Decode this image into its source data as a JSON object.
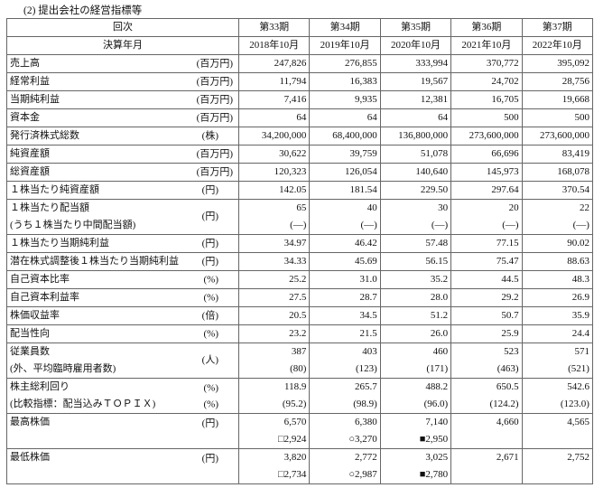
{
  "title": "(2) 提出会社の経営指標等",
  "header": {
    "row1_label": "回次",
    "row2_label": "決算年月",
    "periods": [
      "第33期",
      "第34期",
      "第35期",
      "第36期",
      "第37期"
    ],
    "dates": [
      "2018年10月",
      "2019年10月",
      "2020年10月",
      "2021年10月",
      "2022年10月"
    ]
  },
  "rows": [
    {
      "label": "売上高",
      "unit": "(百万円)",
      "values": [
        "247,826",
        "276,855",
        "333,994",
        "370,772",
        "395,092"
      ]
    },
    {
      "label": "経常利益",
      "unit": "(百万円)",
      "values": [
        "11,794",
        "16,383",
        "19,567",
        "24,702",
        "28,756"
      ]
    },
    {
      "label": "当期純利益",
      "unit": "(百万円)",
      "values": [
        "7,416",
        "9,935",
        "12,381",
        "16,705",
        "19,668"
      ]
    },
    {
      "label": "資本金",
      "unit": "(百万円)",
      "values": [
        "64",
        "64",
        "64",
        "500",
        "500"
      ]
    },
    {
      "label": "発行済株式総数",
      "unit": "(株)",
      "values": [
        "34,200,000",
        "68,400,000",
        "136,800,000",
        "273,600,000",
        "273,600,000"
      ]
    },
    {
      "label": "純資産額",
      "unit": "(百万円)",
      "values": [
        "30,622",
        "39,759",
        "51,078",
        "66,696",
        "83,419"
      ]
    },
    {
      "label": "総資産額",
      "unit": "(百万円)",
      "values": [
        "120,323",
        "126,054",
        "140,640",
        "145,973",
        "168,078"
      ]
    },
    {
      "label": "１株当たり純資産額",
      "unit": "(円)",
      "values": [
        "142.05",
        "181.54",
        "229.50",
        "297.64",
        "370.54"
      ]
    },
    {
      "label": "１株当たり配当額",
      "sublabel": "(うち１株当たり中間配当額)",
      "unit": "(円)",
      "values": [
        "65",
        "40",
        "30",
        "20",
        "22"
      ],
      "subvalues": [
        "(―)",
        "(―)",
        "(―)",
        "(―)",
        "(―)"
      ]
    },
    {
      "label": "１株当たり当期純利益",
      "unit": "(円)",
      "values": [
        "34.97",
        "46.42",
        "57.48",
        "77.15",
        "90.02"
      ]
    },
    {
      "label": "潜在株式調整後１株当たり当期純利益",
      "unit": "(円)",
      "values": [
        "34.33",
        "45.69",
        "56.15",
        "75.47",
        "88.63"
      ]
    },
    {
      "label": "自己資本比率",
      "unit": "(%)",
      "values": [
        "25.2",
        "31.0",
        "35.2",
        "44.5",
        "48.3"
      ]
    },
    {
      "label": "自己資本利益率",
      "unit": "(%)",
      "values": [
        "27.5",
        "28.7",
        "28.0",
        "29.2",
        "26.9"
      ]
    },
    {
      "label": "株価収益率",
      "unit": "(倍)",
      "values": [
        "20.5",
        "34.5",
        "51.2",
        "50.7",
        "35.9"
      ]
    },
    {
      "label": "配当性向",
      "unit": "(%)",
      "values": [
        "23.2",
        "21.5",
        "26.0",
        "25.9",
        "24.4"
      ]
    },
    {
      "label": "従業員数",
      "sublabel": "(外、平均臨時雇用者数)",
      "unit": "(人)",
      "values": [
        "387",
        "403",
        "460",
        "523",
        "571"
      ],
      "subvalues": [
        "(80)",
        "(123)",
        "(171)",
        "(463)",
        "(521)"
      ]
    },
    {
      "label": "株主総利回り",
      "sublabel": "(比較指標：配当込みＴＯＰＩＸ)",
      "unit": "(%)",
      "subunit": "(%)",
      "values": [
        "118.9",
        "265.7",
        "488.2",
        "650.5",
        "542.6"
      ],
      "subvalues": [
        "(95.2)",
        "(98.9)",
        "(96.0)",
        "(124.2)",
        "(123.0)"
      ]
    },
    {
      "label": "最高株価",
      "sublabel": "",
      "unit": "(円)",
      "values": [
        "6,570",
        "6,380",
        "7,140",
        "4,660",
        "4,565"
      ],
      "subvalues": [
        "□2,924",
        "○3,270",
        "■2,950",
        "",
        ""
      ]
    },
    {
      "label": "最低株価",
      "sublabel": "",
      "unit": "(円)",
      "values": [
        "3,820",
        "2,772",
        "3,025",
        "2,671",
        "2,752"
      ],
      "subvalues": [
        "□2,734",
        "○2,987",
        "■2,780",
        "",
        ""
      ]
    }
  ]
}
